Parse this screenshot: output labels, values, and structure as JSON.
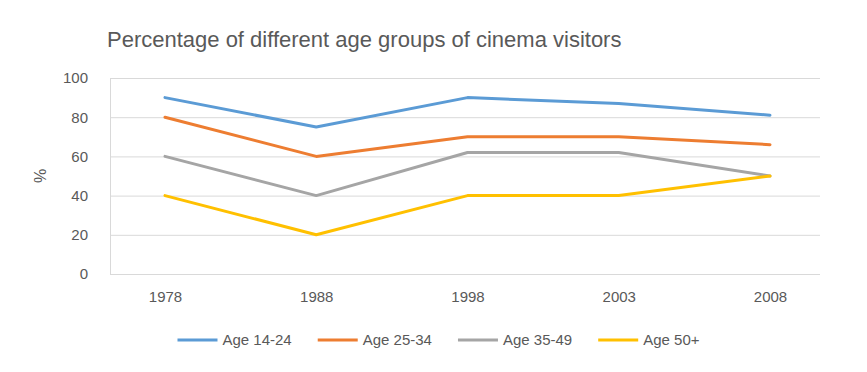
{
  "chart_data": {
    "type": "line",
    "title": "Percentage of different age groups of cinema visitors",
    "y_label": "%",
    "categories": [
      "1978",
      "1988",
      "1998",
      "2003",
      "2008"
    ],
    "series": [
      {
        "name": "Age 14-24",
        "color": "#5b9bd5",
        "values": [
          90,
          75,
          90,
          87,
          81
        ]
      },
      {
        "name": "Age 25-34",
        "color": "#ed7d31",
        "values": [
          80,
          60,
          70,
          70,
          66
        ]
      },
      {
        "name": "Age 35-49",
        "color": "#a5a5a5",
        "values": [
          60,
          40,
          62,
          62,
          50
        ]
      },
      {
        "name": "Age 50+",
        "color": "#ffc000",
        "values": [
          40,
          20,
          40,
          40,
          50
        ]
      }
    ],
    "ylim": [
      0,
      100
    ],
    "yticks": [
      0,
      20,
      40,
      60,
      80,
      100
    ],
    "grid": true,
    "legend": "bottom"
  }
}
